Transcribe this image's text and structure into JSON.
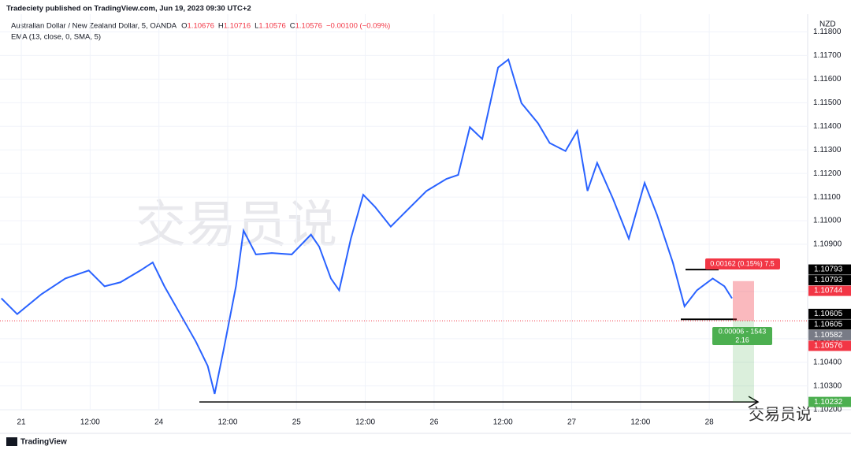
{
  "header": {
    "publisher": "Tradeciety published on TradingView.com, Jun 19, 2023 09:30 UTC+2",
    "symbol": "Australian Dollar / New Zealand Dollar, 5, OANDA",
    "ohlc": [
      {
        "key": "O",
        "value": "1.10676"
      },
      {
        "key": "H",
        "value": "1.10716"
      },
      {
        "key": "L",
        "value": "1.10576"
      },
      {
        "key": "C",
        "value": "1.10576"
      }
    ],
    "change": "−0.00100 (−0.09%)"
  },
  "watermark": "交易员说",
  "footer": {
    "logo": "TradingView",
    "wechat": "交易员说"
  },
  "chart_data": {
    "type": "line",
    "currency": "NZD",
    "grid": true,
    "x": [
      -0.29,
      -0.06,
      0.29,
      0.64,
      0.98,
      1.21,
      1.44,
      1.73,
      1.91,
      2.08,
      2.31,
      2.54,
      2.71,
      2.81,
      2.94,
      3.12,
      3.23,
      3.41,
      3.64,
      3.93,
      4.21,
      4.33,
      4.5,
      4.62,
      4.79,
      4.97,
      5.14,
      5.37,
      5.6,
      5.89,
      6.18,
      6.35,
      6.52,
      6.7,
      6.93,
      7.08,
      7.27,
      7.51,
      7.68,
      7.91,
      8.08,
      8.23,
      8.37,
      8.6,
      8.83,
      9.06,
      9.24,
      9.47,
      9.64,
      9.82,
      10.05,
      10.22,
      10.33
    ],
    "series": [
      {
        "name": "EMA (13, close, 0, SMA, 5)",
        "color": "#2962ff",
        "values": [
          1.10671,
          1.10604,
          1.10688,
          1.10755,
          1.10789,
          1.10722,
          1.10739,
          1.10789,
          1.10823,
          1.10722,
          1.10604,
          1.10486,
          1.10384,
          1.10266,
          1.10452,
          1.10722,
          1.10958,
          1.10857,
          1.10863,
          1.10857,
          1.10941,
          1.1089,
          1.10755,
          1.10705,
          1.10924,
          1.1111,
          1.11059,
          1.10975,
          1.11042,
          1.11126,
          1.11177,
          1.11194,
          1.11396,
          1.11346,
          1.11649,
          1.11683,
          1.11498,
          1.11413,
          1.11329,
          1.11295,
          1.1138,
          1.11126,
          1.11245,
          1.11093,
          1.10924,
          1.1116,
          1.11025,
          1.10823,
          1.10637,
          1.10705,
          1.10755,
          1.10722,
          1.10671
        ]
      }
    ],
    "xlim": [
      -0.31,
      11.43
    ],
    "xticks": [
      {
        "value": 0,
        "label": "21"
      },
      {
        "value": 1,
        "label": "12:00"
      },
      {
        "value": 2,
        "label": "24"
      },
      {
        "value": 3,
        "label": "12:00"
      },
      {
        "value": 4,
        "label": "25"
      },
      {
        "value": 5,
        "label": "12:00"
      },
      {
        "value": 6,
        "label": "26"
      },
      {
        "value": 7,
        "label": "12:00"
      },
      {
        "value": 8,
        "label": "27"
      },
      {
        "value": 9,
        "label": "12:00"
      },
      {
        "value": 10,
        "label": "28"
      }
    ],
    "ylim": [
      1.10199,
      1.11875
    ],
    "yticks": [
      {
        "value": 1.102,
        "label": "1.10200"
      },
      {
        "value": 1.103,
        "label": "1.10300"
      },
      {
        "value": 1.104,
        "label": "1.10400"
      },
      {
        "value": 1.105,
        "label": "1.10500"
      },
      {
        "value": 1.107,
        "label": "1.10700"
      },
      {
        "value": 1.109,
        "label": "1.10900"
      },
      {
        "value": 1.11,
        "label": "1.11000"
      },
      {
        "value": 1.111,
        "label": "1.11100"
      },
      {
        "value": 1.112,
        "label": "1.11200"
      },
      {
        "value": 1.113,
        "label": "1.11300"
      },
      {
        "value": 1.114,
        "label": "1.11400"
      },
      {
        "value": 1.115,
        "label": "1.11500"
      },
      {
        "value": 1.116,
        "label": "1.11600"
      },
      {
        "value": 1.117,
        "label": "1.11700"
      },
      {
        "value": 1.118,
        "label": "1.11800"
      }
    ],
    "price_tags": [
      {
        "value": 1.10793,
        "color": "#000000"
      },
      {
        "value": 1.10793,
        "color": "#000000"
      },
      {
        "value": 1.10744,
        "color": "#f23645"
      },
      {
        "value": 1.10605,
        "color": "#000000"
      },
      {
        "value": 1.10605,
        "color": "#000000"
      },
      {
        "value": 1.10582,
        "color": "#787b86"
      },
      {
        "value": 1.10576,
        "color": "#f23645"
      },
      {
        "value": 1.10232,
        "color": "#4caf50"
      }
    ],
    "position": {
      "risk_label": "0.00162 (0.15%) 7.5",
      "reward_label": "0.00006 - 1543",
      "ratio_label": "2.16"
    }
  }
}
